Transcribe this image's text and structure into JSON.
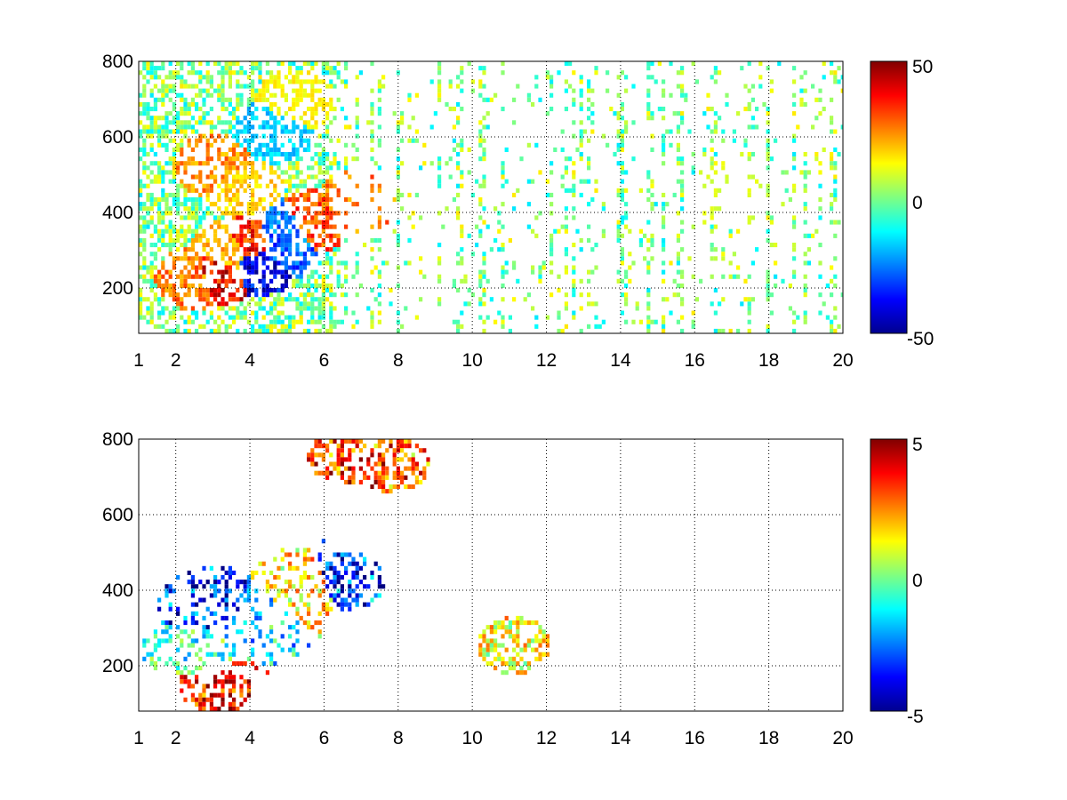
{
  "chart_data": [
    {
      "type": "heatmap",
      "title": "",
      "xlabel": "",
      "ylabel": "",
      "xlim": [
        1,
        20
      ],
      "ylim": [
        80,
        800
      ],
      "x_ticks": [
        1,
        2,
        4,
        6,
        8,
        10,
        12,
        14,
        16,
        18,
        20
      ],
      "x_tick_labels": [
        "1",
        "2",
        "4",
        "6",
        "8",
        "10",
        "12",
        "14",
        "16",
        "18",
        "20"
      ],
      "y_ticks": [
        200,
        400,
        600,
        800
      ],
      "y_tick_labels": [
        "200",
        "400",
        "600",
        "800"
      ],
      "grid": true,
      "colormap": "jet",
      "colorbar": {
        "range": [
          -50,
          50
        ],
        "tick_labels": [
          "50",
          "0",
          "-50"
        ]
      },
      "features": [
        {
          "x": 3.0,
          "y": 240,
          "value": 45
        },
        {
          "x": 2.5,
          "y": 230,
          "value": 30
        },
        {
          "x": 3.4,
          "y": 300,
          "value": 25
        },
        {
          "x": 4.0,
          "y": 320,
          "value": 40
        },
        {
          "x": 4.2,
          "y": 270,
          "value": -45
        },
        {
          "x": 4.8,
          "y": 310,
          "value": -35
        },
        {
          "x": 5.0,
          "y": 360,
          "value": -30
        },
        {
          "x": 5.6,
          "y": 380,
          "value": 35
        },
        {
          "x": 3.0,
          "y": 530,
          "value": 28
        },
        {
          "x": 3.8,
          "y": 470,
          "value": 20
        },
        {
          "x": 4.6,
          "y": 620,
          "value": -20
        },
        {
          "x": 5.2,
          "y": 700,
          "value": 15
        },
        {
          "x": 6.8,
          "y": 430,
          "value": 30
        },
        {
          "x": 16.8,
          "y": 450,
          "value": 10
        }
      ]
    },
    {
      "type": "heatmap",
      "title": "",
      "xlabel": "",
      "ylabel": "",
      "xlim": [
        1,
        20
      ],
      "ylim": [
        80,
        800
      ],
      "x_ticks": [
        1,
        2,
        4,
        6,
        8,
        10,
        12,
        14,
        16,
        18,
        20
      ],
      "x_tick_labels": [
        "1",
        "2",
        "4",
        "6",
        "8",
        "10",
        "12",
        "14",
        "16",
        "18",
        "20"
      ],
      "y_ticks": [
        200,
        400,
        600,
        800
      ],
      "y_tick_labels": [
        "200",
        "400",
        "600",
        "800"
      ],
      "grid": true,
      "colormap": "jet",
      "colorbar": {
        "range": [
          -5,
          5
        ],
        "tick_labels": [
          "5",
          "0",
          "-5"
        ]
      },
      "features": [
        {
          "x": 3.0,
          "y": 350,
          "value": -4.5
        },
        {
          "x": 2.6,
          "y": 240,
          "value": -1
        },
        {
          "x": 4.2,
          "y": 320,
          "value": -2
        },
        {
          "x": 5.4,
          "y": 400,
          "value": 2
        },
        {
          "x": 6.6,
          "y": 430,
          "value": -4.5
        },
        {
          "x": 6.5,
          "y": 760,
          "value": 4
        },
        {
          "x": 7.8,
          "y": 740,
          "value": 3.5
        },
        {
          "x": 3.0,
          "y": 150,
          "value": 4.5
        },
        {
          "x": 11.1,
          "y": 260,
          "value": 1.5
        }
      ]
    }
  ]
}
